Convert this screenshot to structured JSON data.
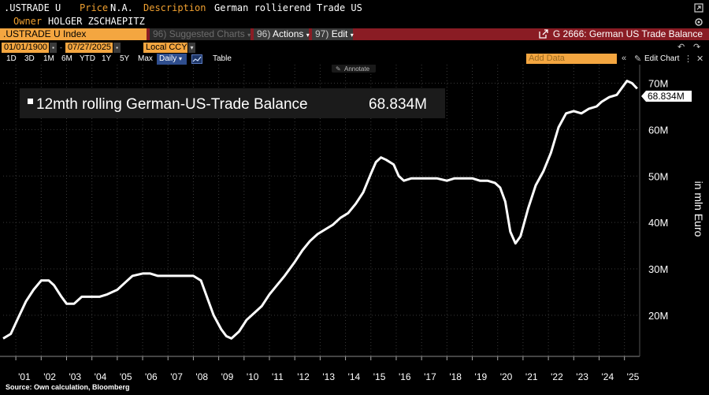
{
  "header": {
    "ticker": ".USTRADE U",
    "price_label": "Price",
    "price_value": "N.A.",
    "description_label": "Description",
    "description_value": "German rollierend Trade US",
    "owner_label": "Owner",
    "owner_value": "HOLGER ZSCHAEPITZ"
  },
  "toolbar": {
    "security": ".USTRADE U Index",
    "suggested": "Suggested Charts",
    "suggested_num": "96)",
    "actions": "Actions",
    "actions_num": "96)",
    "edit": "Edit",
    "edit_num": "97)",
    "chart_title": "G 2666: German US Trade Balance"
  },
  "controls": {
    "start_date": "01/01/1900",
    "end_date": "07/27/2025",
    "currency": "Local CCY",
    "periods": [
      "1D",
      "3D",
      "1M",
      "6M",
      "YTD",
      "1Y",
      "5Y",
      "Max"
    ],
    "frequency": "Daily",
    "table_label": "Table",
    "add_data_placeholder": "Add Data",
    "edit_chart": "Edit Chart",
    "annotate": "Annotate"
  },
  "chart_data": {
    "type": "line",
    "title": "12mth rolling German-US-Trade Balance",
    "last_value_label": "68.834M",
    "ylabel": "in mln Euro",
    "ylim": [
      12,
      74
    ],
    "yticks": [
      20,
      30,
      40,
      50,
      60,
      70
    ],
    "ytick_labels": [
      "20M",
      "30M",
      "40M",
      "50M",
      "60M",
      "70M"
    ],
    "xlim": [
      2000.5,
      2025.6
    ],
    "xticks": [
      2001,
      2002,
      2003,
      2004,
      2005,
      2006,
      2007,
      2008,
      2009,
      2010,
      2011,
      2012,
      2013,
      2014,
      2015,
      2016,
      2017,
      2018,
      2019,
      2020,
      2021,
      2022,
      2023,
      2024,
      2025
    ],
    "xtick_labels": [
      "'01",
      "'02",
      "'03",
      "'04",
      "'05",
      "'06",
      "'07",
      "'08",
      "'09",
      "'10",
      "'11",
      "'12",
      "'13",
      "'14",
      "'15",
      "'16",
      "'17",
      "'18",
      "'19",
      "'20",
      "'21",
      "'22",
      "'23",
      "'24",
      "'25"
    ],
    "series": [
      {
        "name": "12mth rolling German-US-Trade Balance",
        "x": [
          2000.5,
          2000.8,
          2001.1,
          2001.4,
          2001.7,
          2002.0,
          2002.3,
          2002.5,
          2002.8,
          2003.0,
          2003.3,
          2003.6,
          2004.0,
          2004.3,
          2004.6,
          2005.0,
          2005.3,
          2005.6,
          2006.0,
          2006.3,
          2006.6,
          2007.0,
          2007.3,
          2007.6,
          2008.0,
          2008.3,
          2008.5,
          2008.8,
          2009.1,
          2009.3,
          2009.5,
          2009.8,
          2010.1,
          2010.4,
          2010.7,
          2011.0,
          2011.3,
          2011.6,
          2012.0,
          2012.3,
          2012.6,
          2012.9,
          2013.2,
          2013.5,
          2013.8,
          2014.1,
          2014.4,
          2014.7,
          2015.0,
          2015.2,
          2015.4,
          2015.6,
          2015.9,
          2016.1,
          2016.3,
          2016.6,
          2017.0,
          2017.3,
          2017.6,
          2018.0,
          2018.3,
          2018.6,
          2019.0,
          2019.3,
          2019.6,
          2019.9,
          2020.1,
          2020.3,
          2020.5,
          2020.7,
          2020.9,
          2021.2,
          2021.5,
          2021.8,
          2022.1,
          2022.4,
          2022.7,
          2023.0,
          2023.3,
          2023.6,
          2023.9,
          2024.1,
          2024.4,
          2024.7,
          2024.9,
          2025.1,
          2025.3,
          2025.5
        ],
        "values": [
          15,
          16,
          19.5,
          23,
          25.5,
          27.5,
          27.5,
          26.5,
          24,
          22.5,
          22.5,
          24,
          24,
          24,
          24.5,
          25.5,
          27,
          28.5,
          29,
          29,
          28.5,
          28.5,
          28.5,
          28.5,
          28.5,
          27.5,
          24.5,
          20,
          17,
          15.5,
          15,
          16.5,
          19,
          20.5,
          22,
          24.5,
          26.5,
          28.5,
          31.5,
          34,
          36,
          37.5,
          38.5,
          39.5,
          41,
          42,
          44,
          46.5,
          50.5,
          53,
          54,
          53.5,
          52.5,
          50,
          49,
          49.5,
          49.5,
          49.5,
          49.5,
          49,
          49.5,
          49.5,
          49.5,
          49,
          49,
          48.5,
          47.5,
          44.5,
          38,
          35.5,
          37,
          43,
          48,
          51,
          55,
          60.5,
          63.5,
          64,
          63.5,
          64.5,
          65,
          66,
          67,
          67.5,
          69,
          70.5,
          70,
          68.834
        ]
      }
    ]
  },
  "footer": {
    "source": "Source: Own calculation, Bloomberg"
  },
  "colors": {
    "line": "#ffffff",
    "orange": "#f4a640",
    "maroon": "#8a1c24",
    "grid": "#3a3a3a"
  }
}
